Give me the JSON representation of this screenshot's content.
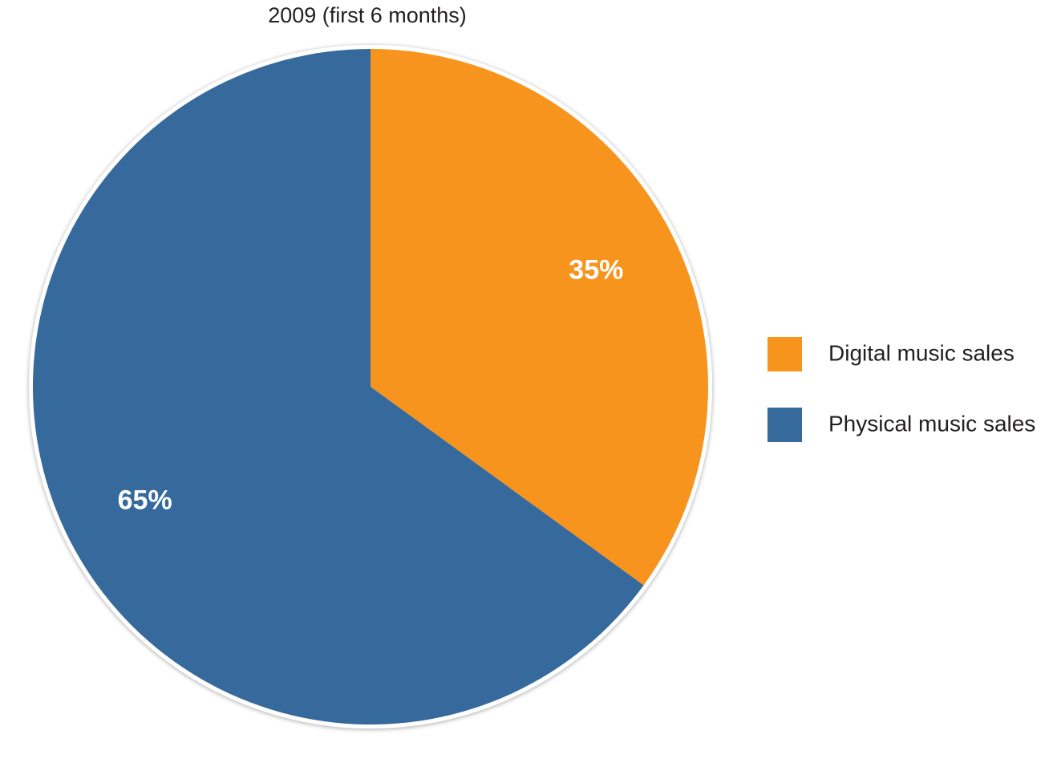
{
  "chart_data": {
    "type": "pie",
    "title": "2009 (first 6 months)",
    "slices": [
      {
        "label": "Digital music sales",
        "value": 35,
        "value_label": "35%",
        "color": "#f7941d"
      },
      {
        "label": "Physical music sales",
        "value": 65,
        "value_label": "65%",
        "color": "#36699c"
      }
    ],
    "legend_position": "right"
  }
}
